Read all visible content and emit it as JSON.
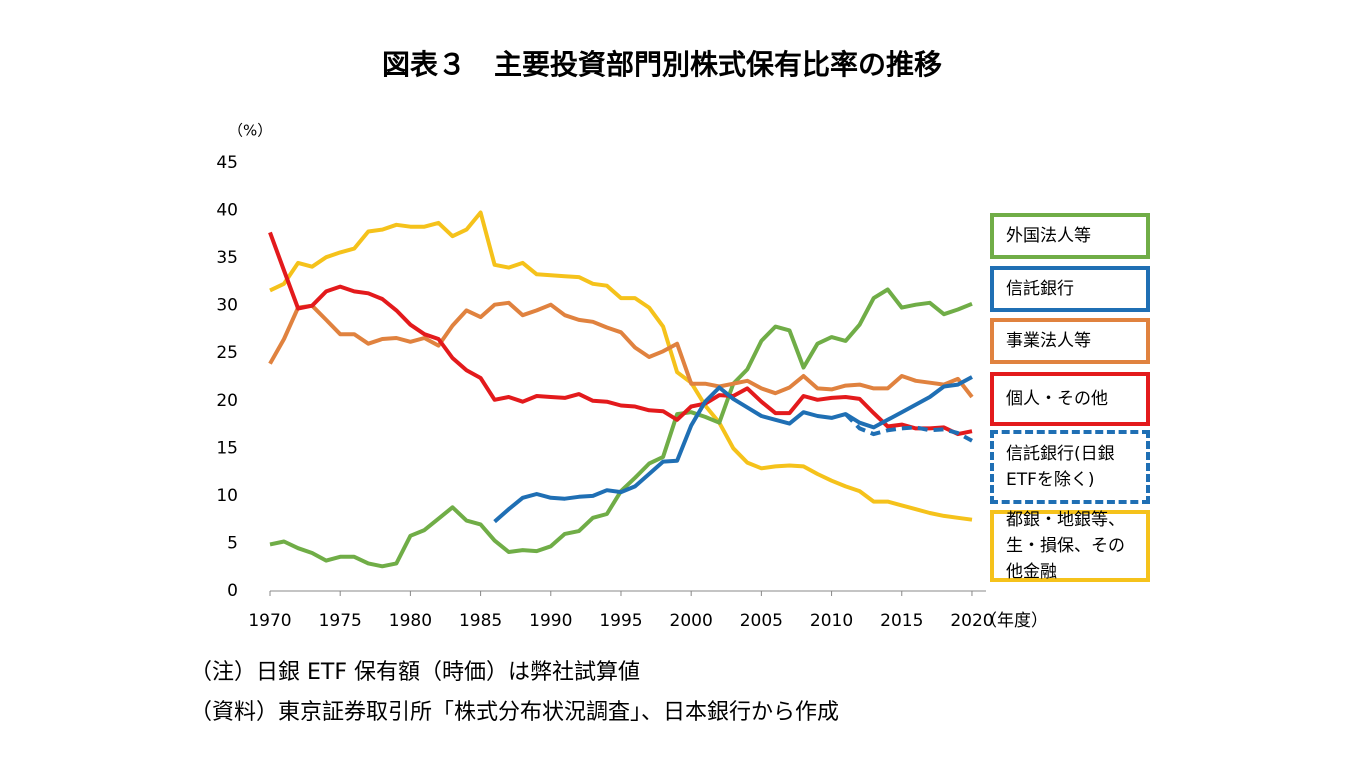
{
  "chart_data": {
    "type": "line",
    "title": "図表３　主要投資部門別株式保有比率の推移",
    "y_label": "（%）",
    "x_label": "（年度）",
    "notes": [
      "（注）日銀 ETF 保有額（時価）は弊社試算値",
      "（資料）東京証券取引所「株式分布状況調査」、日本銀行から作成"
    ],
    "x": [
      1970,
      1971,
      1972,
      1973,
      1974,
      1975,
      1976,
      1977,
      1978,
      1979,
      1980,
      1981,
      1982,
      1983,
      1984,
      1985,
      1986,
      1987,
      1988,
      1989,
      1990,
      1991,
      1992,
      1993,
      1994,
      1995,
      1996,
      1997,
      1998,
      1999,
      2000,
      2001,
      2002,
      2003,
      2004,
      2005,
      2006,
      2007,
      2008,
      2009,
      2010,
      2011,
      2012,
      2013,
      2014,
      2015,
      2016,
      2017,
      2018,
      2019,
      2020
    ],
    "xlim": [
      1970,
      2021
    ],
    "xticks": [
      1970,
      1975,
      1980,
      1985,
      1990,
      1995,
      2000,
      2005,
      2010,
      2015,
      2020
    ],
    "ylim": [
      0,
      45
    ],
    "yticks": [
      0,
      5,
      10,
      15,
      20,
      25,
      30,
      35,
      40,
      45
    ],
    "grid": false,
    "series": [
      {
        "name": "外国法人等",
        "color": "#70ad47",
        "dashed": false,
        "values": [
          4.9,
          5.2,
          4.5,
          4.0,
          3.2,
          3.6,
          3.6,
          2.9,
          2.6,
          2.9,
          5.8,
          6.4,
          7.6,
          8.8,
          7.4,
          7.0,
          5.3,
          4.1,
          4.3,
          4.2,
          4.7,
          6.0,
          6.3,
          7.7,
          8.1,
          10.5,
          11.9,
          13.4,
          14.1,
          18.6,
          18.8,
          18.3,
          17.7,
          21.8,
          23.3,
          26.3,
          27.8,
          27.4,
          23.5,
          26.0,
          26.7,
          26.3,
          28.0,
          30.8,
          31.7,
          29.8,
          30.1,
          30.3,
          29.1,
          29.6,
          30.2
        ]
      },
      {
        "name": "信託銀行",
        "color": "#1f6fb4",
        "dashed": false,
        "values": [
          null,
          null,
          null,
          null,
          null,
          null,
          null,
          null,
          null,
          null,
          null,
          null,
          null,
          null,
          null,
          null,
          7.3,
          8.6,
          9.8,
          10.2,
          9.8,
          9.7,
          9.9,
          10.0,
          10.6,
          10.4,
          11.0,
          12.3,
          13.6,
          13.7,
          17.4,
          19.9,
          21.4,
          20.2,
          19.3,
          18.4,
          18.0,
          17.6,
          18.8,
          18.4,
          18.2,
          18.6,
          17.7,
          17.2,
          18.0,
          18.8,
          19.6,
          20.4,
          21.5,
          21.7,
          22.5
        ]
      },
      {
        "name": "事業法人等",
        "color": "#e0823f",
        "dashed": false,
        "values": [
          23.9,
          26.5,
          29.8,
          30.0,
          28.5,
          27.0,
          27.0,
          26.0,
          26.5,
          26.6,
          26.2,
          26.6,
          25.8,
          27.9,
          29.5,
          28.8,
          30.1,
          30.3,
          29.0,
          29.5,
          30.1,
          29.0,
          28.5,
          28.3,
          27.7,
          27.2,
          25.6,
          24.6,
          25.2,
          26.0,
          21.8,
          21.8,
          21.5,
          21.8,
          22.1,
          21.3,
          20.8,
          21.4,
          22.6,
          21.3,
          21.2,
          21.6,
          21.7,
          21.3,
          21.3,
          22.6,
          22.1,
          21.9,
          21.7,
          22.3,
          20.4
        ]
      },
      {
        "name": "個人・その他",
        "color": "#e31a1c",
        "dashed": false,
        "values": [
          37.7,
          33.7,
          29.7,
          30.0,
          31.5,
          32.0,
          31.5,
          31.3,
          30.7,
          29.5,
          28.0,
          27.0,
          26.5,
          24.5,
          23.2,
          22.4,
          20.1,
          20.4,
          19.9,
          20.5,
          20.4,
          20.3,
          20.7,
          20.0,
          19.9,
          19.5,
          19.4,
          19.0,
          18.9,
          18.0,
          19.4,
          19.7,
          20.6,
          20.5,
          21.3,
          19.9,
          18.7,
          18.7,
          20.5,
          20.1,
          20.3,
          20.4,
          20.2,
          18.7,
          17.3,
          17.5,
          17.1,
          17.1,
          17.2,
          16.5,
          16.8
        ]
      },
      {
        "name": "信託銀行(日銀ETFを除く)",
        "color": "#1f6fb4",
        "dashed": true,
        "values": [
          null,
          null,
          null,
          null,
          null,
          null,
          null,
          null,
          null,
          null,
          null,
          null,
          null,
          null,
          null,
          null,
          null,
          null,
          null,
          null,
          null,
          null,
          null,
          null,
          null,
          null,
          null,
          null,
          null,
          null,
          null,
          null,
          null,
          null,
          null,
          null,
          null,
          null,
          null,
          null,
          null,
          18.6,
          17.1,
          16.5,
          16.9,
          17.1,
          17.2,
          16.9,
          17.0,
          16.6,
          15.8
        ]
      },
      {
        "name": "都銀・地銀等、生・損保、その他金融",
        "color": "#f5c21b",
        "dashed": false,
        "values": [
          31.6,
          32.3,
          34.5,
          34.1,
          35.1,
          35.6,
          36.0,
          37.8,
          38.0,
          38.5,
          38.3,
          38.3,
          38.7,
          37.3,
          38.0,
          39.8,
          34.3,
          34.0,
          34.5,
          33.3,
          33.2,
          33.1,
          33.0,
          32.3,
          32.1,
          30.8,
          30.8,
          29.8,
          27.8,
          23.0,
          21.9,
          19.5,
          17.7,
          15.0,
          13.5,
          12.9,
          13.1,
          13.2,
          13.1,
          12.3,
          11.6,
          11.0,
          10.5,
          9.4,
          9.4,
          9.0,
          8.6,
          8.2,
          7.9,
          7.7,
          7.5
        ]
      }
    ]
  }
}
